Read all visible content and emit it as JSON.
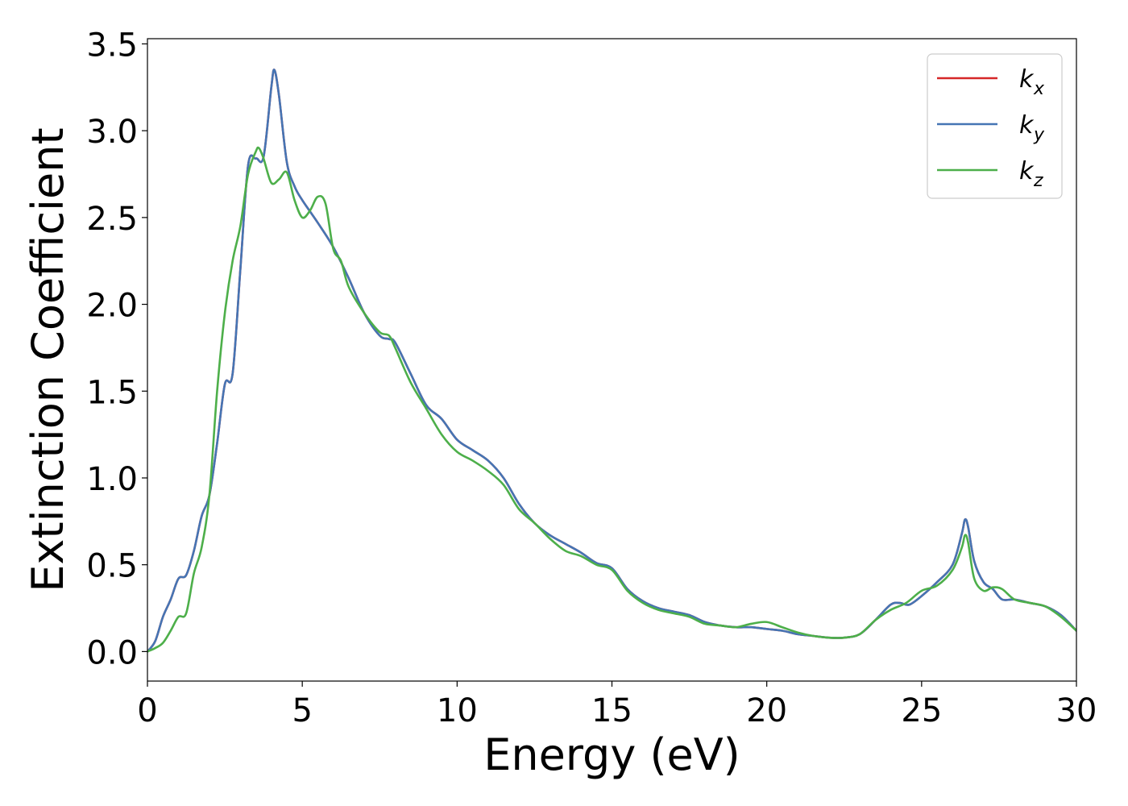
{
  "chart_data": {
    "type": "line",
    "title": "",
    "xlabel": "Energy (eV)",
    "ylabel": "Extinction Coefficient",
    "xlim": [
      0,
      30
    ],
    "ylim": [
      -0.17,
      3.53
    ],
    "xticks": [
      0,
      5,
      10,
      15,
      20,
      25,
      30
    ],
    "xtick_labels": [
      "0",
      "5",
      "10",
      "15",
      "20",
      "25",
      "30"
    ],
    "yticks": [
      0.0,
      0.5,
      1.0,
      1.5,
      2.0,
      2.5,
      3.0,
      3.5
    ],
    "ytick_labels": [
      "0.0",
      "0.5",
      "1.0",
      "1.5",
      "2.0",
      "2.5",
      "3.0",
      "3.5"
    ],
    "grid": false,
    "legend_position": "top-right",
    "series": [
      {
        "name": "k_x",
        "legend_base": "k",
        "legend_sub": "x",
        "color": "#d62728",
        "x": [
          0,
          0.25,
          0.5,
          0.75,
          1.0,
          1.25,
          1.5,
          1.75,
          2.0,
          2.25,
          2.5,
          2.75,
          3.0,
          3.25,
          3.5,
          3.75,
          4.0,
          4.1,
          4.25,
          4.5,
          4.75,
          5.0,
          5.5,
          6.0,
          6.5,
          7.0,
          7.5,
          7.8,
          8.0,
          8.5,
          9.0,
          9.5,
          10.0,
          10.5,
          11.0,
          11.5,
          12.0,
          12.5,
          13.0,
          13.5,
          14.0,
          14.5,
          15.0,
          15.5,
          16.0,
          16.5,
          17.0,
          17.5,
          18.0,
          18.5,
          19.0,
          19.5,
          20.0,
          20.5,
          21.0,
          21.5,
          22.0,
          22.5,
          23.0,
          23.5,
          24.0,
          24.3,
          24.6,
          25.0,
          25.5,
          26.0,
          26.3,
          26.4,
          26.5,
          26.7,
          27.0,
          27.3,
          27.6,
          28.0,
          28.5,
          29.0,
          29.5,
          30.0
        ],
        "values": [
          0.0,
          0.06,
          0.2,
          0.3,
          0.42,
          0.44,
          0.58,
          0.78,
          0.9,
          1.2,
          1.54,
          1.6,
          2.2,
          2.8,
          2.84,
          2.85,
          3.25,
          3.35,
          3.2,
          2.82,
          2.68,
          2.6,
          2.47,
          2.33,
          2.15,
          1.95,
          1.82,
          1.8,
          1.78,
          1.6,
          1.42,
          1.34,
          1.22,
          1.16,
          1.1,
          1.0,
          0.85,
          0.74,
          0.67,
          0.62,
          0.57,
          0.51,
          0.48,
          0.36,
          0.29,
          0.25,
          0.23,
          0.21,
          0.17,
          0.15,
          0.14,
          0.14,
          0.13,
          0.12,
          0.1,
          0.09,
          0.08,
          0.08,
          0.1,
          0.18,
          0.27,
          0.28,
          0.27,
          0.32,
          0.4,
          0.5,
          0.68,
          0.76,
          0.72,
          0.52,
          0.4,
          0.36,
          0.3,
          0.3,
          0.28,
          0.26,
          0.21,
          0.12
        ]
      },
      {
        "name": "k_y",
        "legend_base": "k",
        "legend_sub": "y",
        "color": "#4575b4",
        "x": [
          0,
          0.25,
          0.5,
          0.75,
          1.0,
          1.25,
          1.5,
          1.75,
          2.0,
          2.25,
          2.5,
          2.75,
          3.0,
          3.25,
          3.5,
          3.75,
          4.0,
          4.1,
          4.25,
          4.5,
          4.75,
          5.0,
          5.5,
          6.0,
          6.5,
          7.0,
          7.5,
          7.8,
          8.0,
          8.5,
          9.0,
          9.5,
          10.0,
          10.5,
          11.0,
          11.5,
          12.0,
          12.5,
          13.0,
          13.5,
          14.0,
          14.5,
          15.0,
          15.5,
          16.0,
          16.5,
          17.0,
          17.5,
          18.0,
          18.5,
          19.0,
          19.5,
          20.0,
          20.5,
          21.0,
          21.5,
          22.0,
          22.5,
          23.0,
          23.5,
          24.0,
          24.3,
          24.6,
          25.0,
          25.5,
          26.0,
          26.3,
          26.4,
          26.5,
          26.7,
          27.0,
          27.3,
          27.6,
          28.0,
          28.5,
          29.0,
          29.5,
          30.0
        ],
        "values": [
          0.0,
          0.06,
          0.2,
          0.3,
          0.42,
          0.44,
          0.58,
          0.78,
          0.9,
          1.2,
          1.54,
          1.6,
          2.2,
          2.8,
          2.84,
          2.85,
          3.25,
          3.35,
          3.2,
          2.82,
          2.68,
          2.6,
          2.47,
          2.33,
          2.15,
          1.95,
          1.82,
          1.8,
          1.78,
          1.6,
          1.42,
          1.34,
          1.22,
          1.16,
          1.1,
          1.0,
          0.85,
          0.74,
          0.67,
          0.62,
          0.57,
          0.51,
          0.48,
          0.36,
          0.29,
          0.25,
          0.23,
          0.21,
          0.17,
          0.15,
          0.14,
          0.14,
          0.13,
          0.12,
          0.1,
          0.09,
          0.08,
          0.08,
          0.1,
          0.18,
          0.27,
          0.28,
          0.27,
          0.32,
          0.4,
          0.5,
          0.68,
          0.76,
          0.72,
          0.52,
          0.4,
          0.36,
          0.3,
          0.3,
          0.28,
          0.26,
          0.21,
          0.12
        ]
      },
      {
        "name": "k_z",
        "legend_base": "k",
        "legend_sub": "z",
        "color": "#4daf4a",
        "x": [
          0,
          0.25,
          0.5,
          0.75,
          1.0,
          1.25,
          1.5,
          1.75,
          2.0,
          2.25,
          2.5,
          2.75,
          3.0,
          3.25,
          3.5,
          3.6,
          3.75,
          4.0,
          4.25,
          4.5,
          4.75,
          5.0,
          5.25,
          5.5,
          5.75,
          6.0,
          6.25,
          6.5,
          7.0,
          7.5,
          7.8,
          8.0,
          8.5,
          9.0,
          9.5,
          10.0,
          10.5,
          11.0,
          11.5,
          12.0,
          12.5,
          13.0,
          13.5,
          14.0,
          14.5,
          15.0,
          15.5,
          16.0,
          16.5,
          17.0,
          17.5,
          18.0,
          18.5,
          19.0,
          19.5,
          20.0,
          20.5,
          21.0,
          21.5,
          22.0,
          22.5,
          23.0,
          23.5,
          24.0,
          24.5,
          25.0,
          25.5,
          26.0,
          26.3,
          26.4,
          26.5,
          26.7,
          27.0,
          27.3,
          27.6,
          28.0,
          28.5,
          29.0,
          29.5,
          30.0
        ],
        "values": [
          0.0,
          0.02,
          0.05,
          0.12,
          0.2,
          0.22,
          0.45,
          0.6,
          0.9,
          1.5,
          1.95,
          2.25,
          2.45,
          2.75,
          2.88,
          2.9,
          2.84,
          2.7,
          2.72,
          2.76,
          2.6,
          2.5,
          2.54,
          2.62,
          2.58,
          2.32,
          2.25,
          2.1,
          1.95,
          1.84,
          1.82,
          1.75,
          1.55,
          1.4,
          1.25,
          1.15,
          1.1,
          1.04,
          0.96,
          0.82,
          0.74,
          0.65,
          0.58,
          0.55,
          0.5,
          0.47,
          0.35,
          0.28,
          0.24,
          0.22,
          0.2,
          0.16,
          0.15,
          0.14,
          0.16,
          0.17,
          0.14,
          0.11,
          0.09,
          0.08,
          0.08,
          0.1,
          0.18,
          0.24,
          0.28,
          0.35,
          0.38,
          0.47,
          0.6,
          0.67,
          0.63,
          0.42,
          0.35,
          0.37,
          0.36,
          0.3,
          0.28,
          0.26,
          0.2,
          0.12
        ]
      }
    ]
  }
}
